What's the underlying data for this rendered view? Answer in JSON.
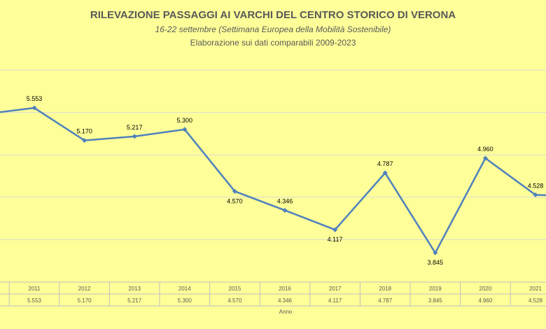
{
  "chart_data": {
    "type": "line",
    "title": "RILEVAZIONE PASSAGGI AI VARCHI DEL CENTRO STORICO DI VERONA",
    "subtitle": "16-22 settembre (Settimana Europea della Mobilità Sostenibile)",
    "subtitle2": "Elaborazione sui dati comparabili 2009-2023",
    "xlabel": "Anno",
    "categories": [
      "2011",
      "2012",
      "2013",
      "2014",
      "2015",
      "2016",
      "2017",
      "2018",
      "2019",
      "2020",
      "2021"
    ],
    "values": [
      5553,
      5170,
      5217,
      5300,
      4570,
      4346,
      4117,
      4787,
      3845,
      4960,
      4528
    ],
    "labels": [
      "5.553",
      "5.170",
      "5.217",
      "5.300",
      "4.570",
      "4.346",
      "4.117",
      "4.787",
      "3.845",
      "4.960",
      "4.528"
    ],
    "label_position": [
      "above",
      "above",
      "above",
      "above",
      "below",
      "above",
      "below",
      "above",
      "below",
      "above",
      "above"
    ],
    "partial_left_value": 5480,
    "partial_right_value": 4510,
    "ylim": [
      3500,
      6000
    ],
    "grid": true,
    "data_table": true,
    "line_color": "#4F81BD",
    "grid_color": "#D9D9D9"
  }
}
